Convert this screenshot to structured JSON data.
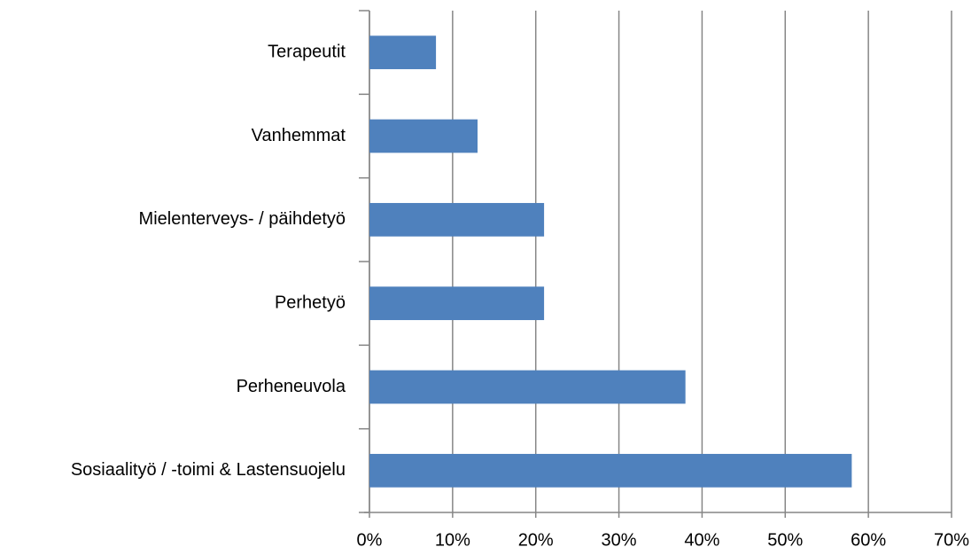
{
  "chart_data": {
    "type": "barh",
    "categories": [
      "Terapeutit",
      "Vanhemmat",
      "Mielenterveys- / päihdetyö",
      "Perhetyö",
      "Perheneuvola",
      "Sosiaalityö / -toimi & Lastensuojelu"
    ],
    "values": [
      8,
      13,
      21,
      21,
      38,
      58
    ],
    "color": "#4f81bd",
    "xlim": [
      0,
      70
    ],
    "xticks": [
      {
        "value": 0,
        "label": "0%"
      },
      {
        "value": 10,
        "label": "10%"
      },
      {
        "value": 20,
        "label": "20%"
      },
      {
        "value": 30,
        "label": "30%"
      },
      {
        "value": 40,
        "label": "40%"
      },
      {
        "value": 50,
        "label": "50%"
      },
      {
        "value": 60,
        "label": "60%"
      },
      {
        "value": 70,
        "label": "70%"
      }
    ],
    "grid": true
  }
}
